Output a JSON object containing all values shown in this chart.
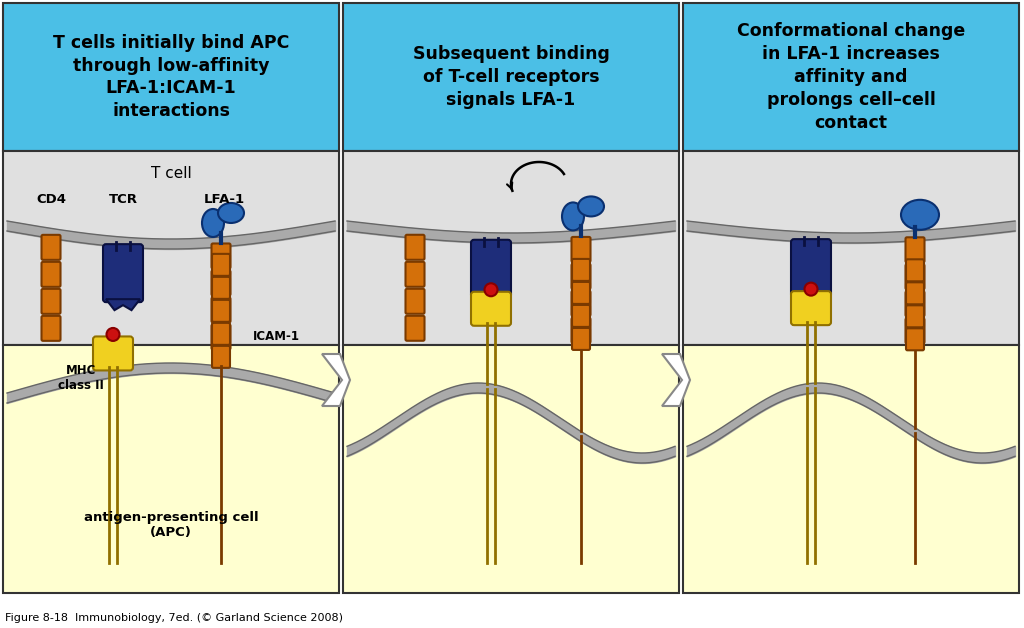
{
  "title1": "T cells initially bind APC\nthrough low-affinity\nLFA-1:ICAM-1\ninteractions",
  "title2": "Subsequent binding\nof T-cell receptors\nsignals LFA-1",
  "title3": "Conformational change\nin LFA-1 increases\naffinity and\nprolongs cell–cell\ncontact",
  "caption": "Figure 8-18  Immunobiology, 7ed. (© Garland Science 2008)",
  "header_bg": "#4BBFE6",
  "panel_bg_top": "#E0E0E0",
  "panel_bg_bottom": "#FFFFD0",
  "ec_col": "#333333",
  "cd4_fc": "#D4700A",
  "cd4_ec": "#7A3A00",
  "tcr_fc": "#1E2D7A",
  "tcr_ec": "#0A1040",
  "lfa1_fc": "#2A6AB8",
  "lfa1_ec": "#0A3070",
  "lfa1_light": "#4A8AD8",
  "mhc_fc": "#F0D020",
  "mhc_ec": "#907000",
  "mhc_dot": "#CC1010",
  "mhc_dot_ec": "#880000",
  "icam_fc": "#D4700A",
  "icam_ec": "#7A3A00",
  "mem_fill": "#AAAAAA",
  "mem_edge": "#666666",
  "arrow_fc": "#FFFFFF",
  "arrow_ec": "#888888",
  "black": "#000000"
}
